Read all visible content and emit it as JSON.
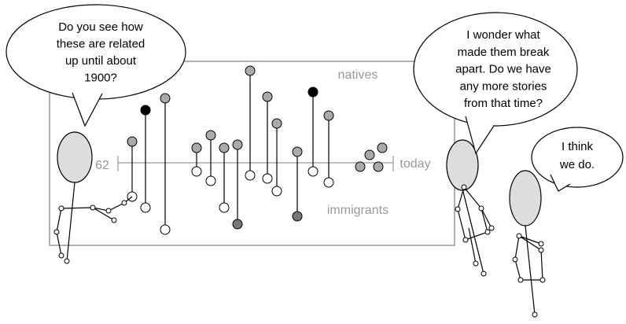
{
  "bubbles": [
    {
      "lines": [
        "Do you see how",
        "these are related",
        "up until about",
        "1900?"
      ]
    },
    {
      "lines": [
        "I wonder what",
        "made them break",
        "apart. Do we have",
        "any more stories",
        "from that time?"
      ]
    },
    {
      "lines": [
        "I think",
        "we do."
      ]
    }
  ],
  "board": {
    "left_label": "62",
    "right_label": "today",
    "top_label": "natives",
    "bottom_label": "immigrants"
  }
}
